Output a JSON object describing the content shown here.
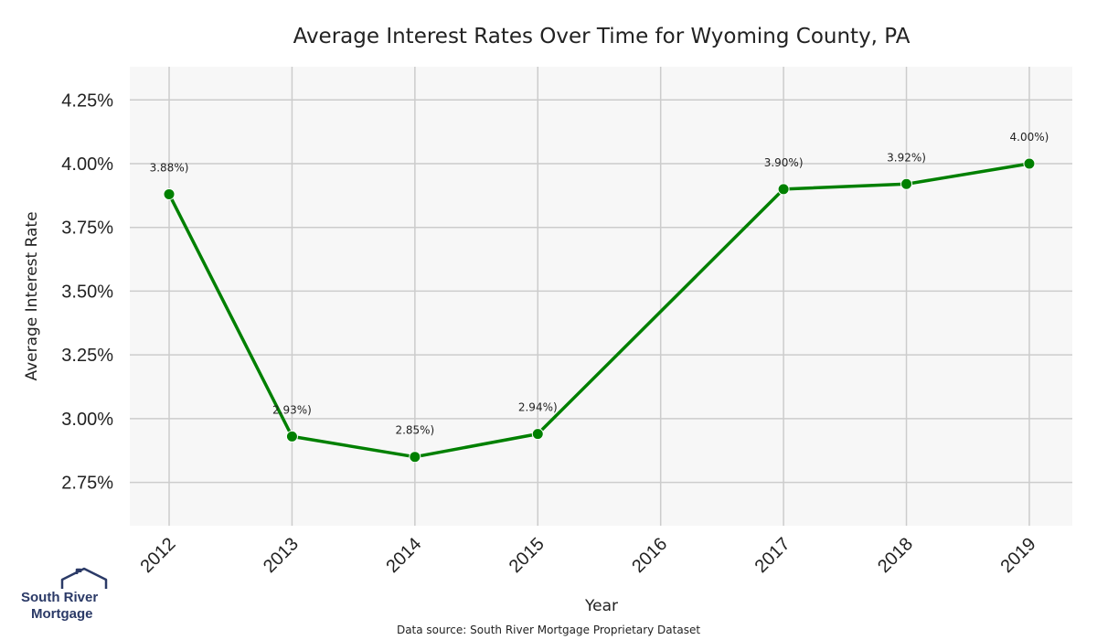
{
  "colors": {
    "line": "#008000",
    "plot_bg": "#f7f7f7",
    "grid": "#cccccc",
    "logo": "#2b3a67"
  },
  "logo": {
    "line1": "South River",
    "line2": "Mortgage"
  },
  "source_note": "Data source: South River Mortgage Proprietary Dataset",
  "chart_data": {
    "type": "line",
    "title": "Average Interest Rates Over Time for Wyoming County, PA",
    "xlabel": "Year",
    "ylabel": "Average Interest Rate",
    "categories": [
      "2012",
      "2013",
      "2014",
      "2015",
      "2016",
      "2017",
      "2018",
      "2019"
    ],
    "series": [
      {
        "x": [
          2012,
          2013,
          2014,
          2015,
          2017,
          2018,
          2019
        ],
        "values": [
          3.88,
          2.93,
          2.85,
          2.94,
          3.9,
          3.92,
          4.0
        ],
        "labels": [
          "3.88%)",
          "2.93%)",
          "2.85%)",
          "2.94%)",
          "3.90%)",
          "3.92%)",
          "4.00%)"
        ]
      }
    ],
    "yticks": [
      2.75,
      3.0,
      3.25,
      3.5,
      3.75,
      4.0,
      4.25
    ],
    "ytick_labels": [
      "2.75%",
      "3.00%",
      "3.25%",
      "3.50%",
      "3.75%",
      "4.00%",
      "4.25%"
    ],
    "ylim": [
      2.58,
      4.38
    ],
    "xlim": [
      2011.68,
      2019.35
    ],
    "grid": true
  }
}
